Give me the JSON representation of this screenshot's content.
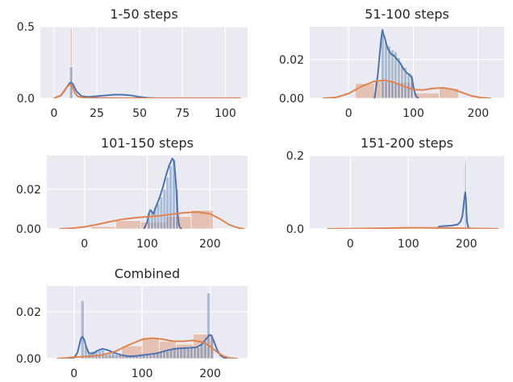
{
  "colors": {
    "blue": "#4c72b0",
    "orange": "#dd8452",
    "panel_bg": "#eaeaf2",
    "grid": "#ffffff"
  },
  "chart_data": [
    {
      "type": "area",
      "title": "1-50 steps",
      "xlim": [
        -8,
        113
      ],
      "ylim": [
        0,
        0.5
      ],
      "xticks": [
        0,
        25,
        50,
        75,
        100
      ],
      "yticks": [
        0.0,
        0.5
      ],
      "ytick_labels": [
        "0.0",
        "0.5"
      ],
      "hist_blue": [
        {
          "x0": 9,
          "x1": 11,
          "y": 0.22
        }
      ],
      "hist_orange": [
        {
          "x0": 9.5,
          "x1": 10.5,
          "y": 0.49
        }
      ],
      "series": [
        {
          "color": "blue",
          "x": [
            0,
            4,
            7,
            9,
            10,
            11,
            13,
            16,
            20,
            25,
            30,
            35,
            40,
            45,
            50,
            55,
            60
          ],
          "y": [
            0,
            0.02,
            0.07,
            0.105,
            0.11,
            0.1,
            0.05,
            0.015,
            0.01,
            0.015,
            0.02,
            0.025,
            0.025,
            0.02,
            0.01,
            0.003,
            0
          ]
        },
        {
          "color": "orange",
          "x": [
            0,
            4,
            6,
            8,
            9,
            10,
            11,
            12,
            14,
            18,
            25,
            40,
            60,
            80,
            100,
            109
          ],
          "y": [
            0,
            0.02,
            0.05,
            0.085,
            0.095,
            0.092,
            0.075,
            0.04,
            0.012,
            0.004,
            0.002,
            0.001,
            0.001,
            0.001,
            0.001,
            0.001
          ]
        }
      ]
    },
    {
      "type": "area",
      "title": "51-100 steps",
      "xlim": [
        -60,
        240
      ],
      "ylim": [
        0,
        0.037
      ],
      "xticks": [
        0,
        100,
        200
      ],
      "yticks": [
        0.0,
        0.02
      ],
      "ytick_labels": [
        "0.00",
        "0.02"
      ],
      "hist_blue": [
        {
          "x0": 50,
          "x1": 55,
          "y": 0.036
        },
        {
          "x0": 55,
          "x1": 60,
          "y": 0.029
        },
        {
          "x0": 60,
          "x1": 65,
          "y": 0.027
        },
        {
          "x0": 65,
          "x1": 70,
          "y": 0.025
        },
        {
          "x0": 70,
          "x1": 75,
          "y": 0.024
        },
        {
          "x0": 75,
          "x1": 80,
          "y": 0.021
        },
        {
          "x0": 80,
          "x1": 85,
          "y": 0.017
        },
        {
          "x0": 85,
          "x1": 90,
          "y": 0.016
        },
        {
          "x0": 90,
          "x1": 95,
          "y": 0.013
        },
        {
          "x0": 95,
          "x1": 100,
          "y": 0.012
        }
      ],
      "hist_orange": [
        {
          "x0": 10,
          "x1": 40,
          "y": 0.0077
        },
        {
          "x0": 40,
          "x1": 70,
          "y": 0.0087
        },
        {
          "x0": 70,
          "x1": 100,
          "y": 0.0083
        },
        {
          "x0": 100,
          "x1": 140,
          "y": 0.0028
        },
        {
          "x0": 140,
          "x1": 170,
          "y": 0.0052
        }
      ],
      "series": [
        {
          "color": "blue",
          "x": [
            40,
            45,
            50,
            52,
            55,
            60,
            65,
            70,
            75,
            80,
            85,
            90,
            95,
            98,
            100,
            103,
            105,
            108
          ],
          "y": [
            0,
            0.012,
            0.03,
            0.035,
            0.032,
            0.026,
            0.023,
            0.022,
            0.02,
            0.018,
            0.015,
            0.013,
            0.012,
            0.01,
            0.006,
            0.002,
            0.0007,
            0
          ]
        },
        {
          "color": "orange",
          "x": [
            -40,
            -20,
            0,
            20,
            40,
            55,
            70,
            85,
            100,
            115,
            130,
            145,
            160,
            175,
            190,
            205,
            220
          ],
          "y": [
            0,
            0.0004,
            0.0025,
            0.0062,
            0.0088,
            0.0093,
            0.0083,
            0.0062,
            0.0045,
            0.0043,
            0.0051,
            0.0054,
            0.0047,
            0.003,
            0.0012,
            0.0003,
            0
          ]
        }
      ]
    },
    {
      "type": "area",
      "title": "101-150 steps",
      "xlim": [
        -60,
        260
      ],
      "ylim": [
        0,
        0.037
      ],
      "xticks": [
        0,
        100,
        200
      ],
      "yticks": [
        0.0,
        0.02
      ],
      "ytick_labels": [
        "0.00",
        "0.02"
      ],
      "hist_blue": [
        {
          "x0": 100,
          "x1": 105,
          "y": 0.008
        },
        {
          "x0": 105,
          "x1": 110,
          "y": 0.009
        },
        {
          "x0": 110,
          "x1": 115,
          "y": 0.011
        },
        {
          "x0": 115,
          "x1": 120,
          "y": 0.013
        },
        {
          "x0": 120,
          "x1": 125,
          "y": 0.016
        },
        {
          "x0": 125,
          "x1": 130,
          "y": 0.02
        },
        {
          "x0": 130,
          "x1": 135,
          "y": 0.026
        },
        {
          "x0": 135,
          "x1": 140,
          "y": 0.032
        },
        {
          "x0": 140,
          "x1": 145,
          "y": 0.035
        },
        {
          "x0": 145,
          "x1": 150,
          "y": 0.02
        }
      ],
      "hist_orange": [
        {
          "x0": 10,
          "x1": 50,
          "y": 0.0012
        },
        {
          "x0": 50,
          "x1": 90,
          "y": 0.0042
        },
        {
          "x0": 90,
          "x1": 130,
          "y": 0.0036
        },
        {
          "x0": 130,
          "x1": 170,
          "y": 0.0063
        },
        {
          "x0": 170,
          "x1": 205,
          "y": 0.0094
        }
      ],
      "series": [
        {
          "color": "blue",
          "x": [
            95,
            100,
            103,
            105,
            108,
            110,
            112,
            115,
            120,
            125,
            130,
            135,
            140,
            143,
            146,
            148,
            150,
            152,
            155
          ],
          "y": [
            0,
            0.0035,
            0.008,
            0.0095,
            0.0085,
            0.0075,
            0.0095,
            0.012,
            0.016,
            0.021,
            0.027,
            0.032,
            0.0355,
            0.034,
            0.022,
            0.01,
            0.003,
            0.0007,
            0
          ]
        },
        {
          "color": "orange",
          "x": [
            -40,
            -20,
            0,
            20,
            40,
            60,
            80,
            100,
            120,
            140,
            160,
            180,
            200,
            215,
            230,
            245,
            255
          ],
          "y": [
            0,
            0.0003,
            0.001,
            0.0022,
            0.0036,
            0.0048,
            0.0056,
            0.0061,
            0.0066,
            0.0074,
            0.0082,
            0.0085,
            0.0076,
            0.0052,
            0.0022,
            0.0005,
            0
          ]
        }
      ]
    },
    {
      "type": "area",
      "title": "151-200 steps",
      "xlim": [
        -70,
        265
      ],
      "ylim": [
        0,
        0.2
      ],
      "xticks": [
        0,
        100,
        200
      ],
      "yticks": [
        0.0,
        0.2
      ],
      "ytick_labels": [
        "0.0",
        "0.2"
      ],
      "hist_blue": [
        {
          "x0": 196,
          "x1": 198,
          "y": 0.18
        },
        {
          "x0": 198,
          "x1": 200,
          "y": 0.19
        }
      ],
      "hist_orange": [
        {
          "x0": 80,
          "x1": 160,
          "y": 0.0025
        }
      ],
      "series": [
        {
          "color": "blue",
          "x": [
            148,
            152,
            155,
            165,
            175,
            185,
            190,
            193,
            195,
            197,
            198,
            199,
            200,
            201,
            203,
            206
          ],
          "y": [
            0,
            0.005,
            0.007,
            0.008,
            0.009,
            0.012,
            0.02,
            0.035,
            0.06,
            0.09,
            0.1,
            0.085,
            0.05,
            0.02,
            0.005,
            0
          ]
        },
        {
          "color": "orange",
          "x": [
            -40,
            0,
            40,
            80,
            100,
            120,
            160,
            200,
            240,
            255
          ],
          "y": [
            0,
            0.0006,
            0.0015,
            0.0025,
            0.003,
            0.003,
            0.0025,
            0.0015,
            0.0005,
            0
          ]
        }
      ]
    },
    {
      "type": "area",
      "title": "Combined",
      "xlim": [
        -40,
        255
      ],
      "ylim": [
        0,
        0.031
      ],
      "xticks": [
        0,
        100,
        200
      ],
      "yticks": [
        0.0,
        0.02
      ],
      "ytick_labels": [
        "0.00",
        "0.02"
      ],
      "hist_blue": [
        {
          "x0": 10,
          "x1": 15,
          "y": 0.0248
        },
        {
          "x0": 15,
          "x1": 20,
          "y": 0.0057
        },
        {
          "x0": 20,
          "x1": 25,
          "y": 0.0025
        },
        {
          "x0": 25,
          "x1": 30,
          "y": 0.0032
        },
        {
          "x0": 30,
          "x1": 35,
          "y": 0.003
        },
        {
          "x0": 35,
          "x1": 40,
          "y": 0.0035
        },
        {
          "x0": 40,
          "x1": 45,
          "y": 0.0038
        },
        {
          "x0": 45,
          "x1": 50,
          "y": 0.0025
        },
        {
          "x0": 50,
          "x1": 55,
          "y": 0.0022
        },
        {
          "x0": 55,
          "x1": 60,
          "y": 0.0025
        },
        {
          "x0": 60,
          "x1": 65,
          "y": 0.0018
        },
        {
          "x0": 65,
          "x1": 70,
          "y": 0.0015
        },
        {
          "x0": 70,
          "x1": 75,
          "y": 0.0012
        },
        {
          "x0": 75,
          "x1": 80,
          "y": 0.0012
        },
        {
          "x0": 80,
          "x1": 85,
          "y": 0.0012
        },
        {
          "x0": 85,
          "x1": 90,
          "y": 0.0012
        },
        {
          "x0": 90,
          "x1": 95,
          "y": 0.0013
        },
        {
          "x0": 95,
          "x1": 100,
          "y": 0.0015
        },
        {
          "x0": 100,
          "x1": 105,
          "y": 0.0014
        },
        {
          "x0": 105,
          "x1": 110,
          "y": 0.0015
        },
        {
          "x0": 110,
          "x1": 115,
          "y": 0.0016
        },
        {
          "x0": 115,
          "x1": 120,
          "y": 0.0018
        },
        {
          "x0": 120,
          "x1": 125,
          "y": 0.0025
        },
        {
          "x0": 125,
          "x1": 130,
          "y": 0.0032
        },
        {
          "x0": 130,
          "x1": 135,
          "y": 0.0035
        },
        {
          "x0": 135,
          "x1": 140,
          "y": 0.0039
        },
        {
          "x0": 140,
          "x1": 145,
          "y": 0.0043
        },
        {
          "x0": 145,
          "x1": 150,
          "y": 0.0042
        },
        {
          "x0": 150,
          "x1": 155,
          "y": 0.0045
        },
        {
          "x0": 155,
          "x1": 160,
          "y": 0.0046
        },
        {
          "x0": 160,
          "x1": 165,
          "y": 0.0045
        },
        {
          "x0": 165,
          "x1": 170,
          "y": 0.0043
        },
        {
          "x0": 170,
          "x1": 175,
          "y": 0.0045
        },
        {
          "x0": 175,
          "x1": 180,
          "y": 0.0046
        },
        {
          "x0": 180,
          "x1": 185,
          "y": 0.0048
        },
        {
          "x0": 185,
          "x1": 190,
          "y": 0.0062
        },
        {
          "x0": 190,
          "x1": 195,
          "y": 0.0075
        },
        {
          "x0": 195,
          "x1": 200,
          "y": 0.028
        },
        {
          "x0": 200,
          "x1": 205,
          "y": 0.0092
        }
      ],
      "hist_orange": [
        {
          "x0": 10,
          "x1": 40,
          "y": 0.0012
        },
        {
          "x0": 40,
          "x1": 70,
          "y": 0.0015
        },
        {
          "x0": 70,
          "x1": 100,
          "y": 0.0055
        },
        {
          "x0": 100,
          "x1": 125,
          "y": 0.0092
        },
        {
          "x0": 125,
          "x1": 150,
          "y": 0.0074
        },
        {
          "x0": 150,
          "x1": 175,
          "y": 0.0062
        },
        {
          "x0": 175,
          "x1": 205,
          "y": 0.0105
        }
      ],
      "series": [
        {
          "color": "blue",
          "x": [
            -10,
            0,
            5,
            10,
            12,
            15,
            18,
            22,
            28,
            35,
            42,
            50,
            60,
            70,
            80,
            90,
            100,
            110,
            120,
            130,
            140,
            150,
            160,
            170,
            180,
            188,
            195,
            199,
            202,
            205,
            210,
            215,
            220,
            225
          ],
          "y": [
            0,
            0.0004,
            0.0025,
            0.0085,
            0.0094,
            0.0082,
            0.0048,
            0.0023,
            0.0022,
            0.0035,
            0.0042,
            0.0036,
            0.0024,
            0.0015,
            0.001,
            0.0011,
            0.0015,
            0.0018,
            0.0022,
            0.003,
            0.0038,
            0.0043,
            0.0045,
            0.0046,
            0.0048,
            0.0062,
            0.0088,
            0.0102,
            0.0098,
            0.0078,
            0.0038,
            0.0014,
            0.0004,
            0
          ]
        },
        {
          "color": "orange",
          "x": [
            -25,
            -10,
            0,
            20,
            40,
            60,
            80,
            100,
            115,
            130,
            145,
            160,
            175,
            190,
            200,
            210,
            220,
            230,
            240
          ],
          "y": [
            0,
            0.0003,
            0.0006,
            0.001,
            0.0015,
            0.003,
            0.0058,
            0.0082,
            0.0088,
            0.0083,
            0.0075,
            0.0074,
            0.0078,
            0.007,
            0.0052,
            0.0028,
            0.001,
            0.0002,
            0
          ]
        }
      ]
    }
  ]
}
